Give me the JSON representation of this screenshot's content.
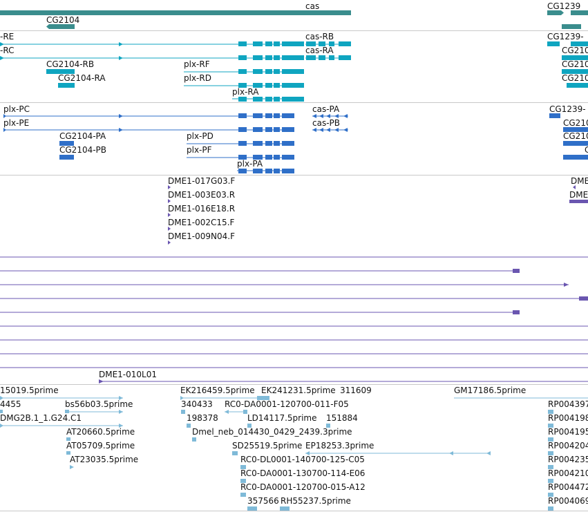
{
  "colors": {
    "gene": "#3a8d8d",
    "transcript": "#0fa5c0",
    "cds": "#2f6fc8",
    "clone_end": "#6a56b0",
    "est": "#7fbad8",
    "separator": "#c8c8c8"
  },
  "tracks": {
    "genes": {
      "labels": [
        "cas",
        "CG2104",
        "CG1239"
      ]
    },
    "transcripts": {
      "labels": [
        "-RE",
        "-RC",
        "CG2104-RB",
        "CG2104-RA",
        "plx-RF",
        "plx-RD",
        "plx-RA",
        "cas-RB",
        "cas-RA",
        "CG1239-",
        "CG210",
        "CG210",
        "CG210"
      ]
    },
    "cds": {
      "labels": [
        "plx-PC",
        "plx-PE",
        "CG2104-PA",
        "CG2104-PB",
        "plx-PD",
        "plx-PF",
        "plx-PA",
        "cas-PA",
        "cas-PB",
        "CG1239-",
        "CG210",
        "CG210",
        "C"
      ]
    },
    "clones": {
      "labels": [
        "DME1-017G03.F",
        "DME1-003E03.R",
        "DME1-016E18.R",
        "DME1-002C15.F",
        "DME1-009N04.F",
        "DME",
        "DME",
        "DME1-010L01"
      ]
    },
    "ests": {
      "labels": [
        "15019.5prime",
        "4455",
        "bs56b03.5prime",
        "DMG2B.1_1.G24.C1",
        "AT20660.5prime",
        "AT05709.5prime",
        "AT23035.5prime",
        "EK216459.5prime",
        "EK241231.5prime",
        "311609",
        "340433",
        "RC0-DA0001-120700-011-F05",
        "198378",
        "LD14117.5prime",
        "151884",
        "Dmel_neb_014430_0429_2439.3prime",
        "SD25519.5prime",
        "EP18253.3prime",
        "RC0-DL0001-140700-125-C05",
        "RC0-DA0001-130700-114-E06",
        "RC0-DA0001-120700-015-A12",
        "357566",
        "RH55237.5prime",
        "GM17186.5prime",
        "RP004397",
        "RP004198",
        "RP004195",
        "RP004204",
        "RP004235",
        "RP004210",
        "RP004472",
        "RP004069"
      ]
    }
  }
}
